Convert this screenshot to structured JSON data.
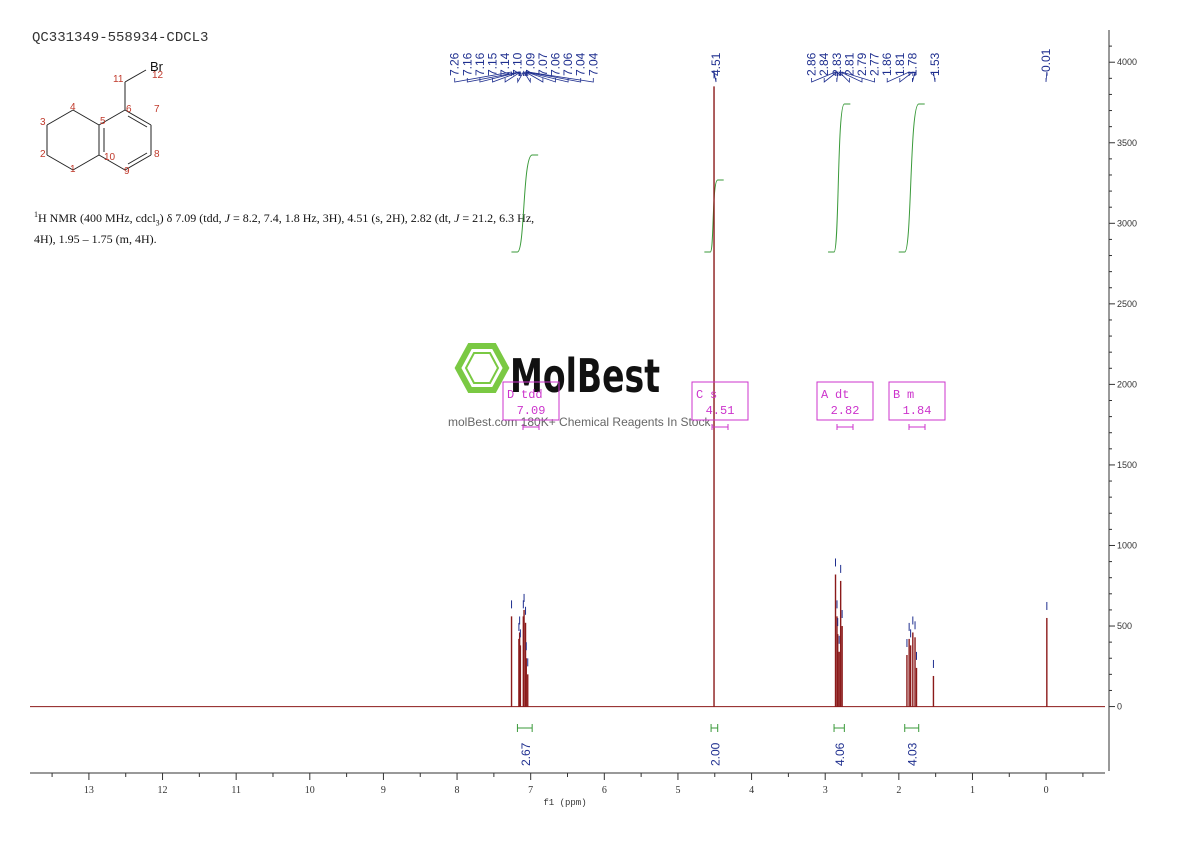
{
  "sample_id": "QC331349-558934-CDCL3",
  "nmr_text": {
    "part1": "H NMR (400 MHz, cdcl",
    "sub": "3",
    "part2": ") δ 7.09 (tdd, ",
    "j1": "J",
    "part3": " = 8.2, 7.4, 1.8 Hz, 3H), 4.51 (s, 2H), 2.82 (dt, ",
    "j2": "J",
    "part4": " = 21.2, 6.3 Hz,",
    "line2": "4H), 1.95 – 1.75 (m, 4H).",
    "sup": "1"
  },
  "structure": {
    "atom_labels": [
      "1",
      "2",
      "3",
      "4",
      "5",
      "6",
      "7",
      "8",
      "9",
      "10",
      "11",
      "12"
    ],
    "substituent": "Br"
  },
  "watermark": {
    "brand": "MolBest",
    "tagline": "molBest.com 180K+ Chemical Reagents In Stock."
  },
  "colors": {
    "spectrum": "#8b1a1a",
    "peak_labels": "#1f2f8f",
    "integral_curve": "#3a9a3a",
    "multiplet_box": "#cc33cc",
    "logo": "#7ac943",
    "axis": "#333333"
  },
  "chart_data": {
    "type": "line",
    "title": "",
    "xlabel": "f1 (ppm)",
    "ylabel": "",
    "x_reversed": true,
    "xlim": [
      13.8,
      -0.8
    ],
    "ylim": [
      -400,
      4200
    ],
    "x_ticks": [
      13,
      12,
      11,
      10,
      9,
      8,
      7,
      6,
      5,
      4,
      3,
      2,
      1,
      0
    ],
    "y_ticks": [
      0,
      500,
      1000,
      1500,
      2000,
      2500,
      3000,
      3500,
      4000
    ],
    "peak_labels_group1": [
      "7.26",
      "7.16",
      "7.16",
      "7.15",
      "7.14",
      "7.10",
      "7.09",
      "7.07",
      "7.06",
      "7.06",
      "7.04",
      "7.04"
    ],
    "peak_labels_group2": [
      "4.51"
    ],
    "peak_labels_group3": [
      "2.86",
      "2.84",
      "2.83",
      "2.81",
      "2.79",
      "2.77",
      "1.86",
      "1.81",
      "1.78"
    ],
    "peak_labels_group4": [
      "1.53"
    ],
    "peak_labels_group5": [
      "-0.01"
    ],
    "peaks": [
      {
        "ppm": 7.26,
        "height": 560
      },
      {
        "ppm": 7.16,
        "height": 420
      },
      {
        "ppm": 7.15,
        "height": 460
      },
      {
        "ppm": 7.14,
        "height": 380
      },
      {
        "ppm": 7.1,
        "height": 560
      },
      {
        "ppm": 7.09,
        "height": 600
      },
      {
        "ppm": 7.07,
        "height": 520
      },
      {
        "ppm": 7.06,
        "height": 300
      },
      {
        "ppm": 7.04,
        "height": 200
      },
      {
        "ppm": 4.51,
        "height": 3850
      },
      {
        "ppm": 2.86,
        "height": 820
      },
      {
        "ppm": 2.84,
        "height": 560
      },
      {
        "ppm": 2.83,
        "height": 450
      },
      {
        "ppm": 2.81,
        "height": 340
      },
      {
        "ppm": 2.79,
        "height": 780
      },
      {
        "ppm": 2.77,
        "height": 500
      },
      {
        "ppm": 1.89,
        "height": 320
      },
      {
        "ppm": 1.86,
        "height": 420
      },
      {
        "ppm": 1.84,
        "height": 380
      },
      {
        "ppm": 1.81,
        "height": 460
      },
      {
        "ppm": 1.78,
        "height": 430
      },
      {
        "ppm": 1.76,
        "height": 240
      },
      {
        "ppm": 1.53,
        "height": 190
      },
      {
        "ppm": -0.01,
        "height": 550
      }
    ],
    "multiplets": [
      {
        "id": "D",
        "type": "tdd",
        "shift": "7.09",
        "ppm": 7.09
      },
      {
        "id": "C",
        "type": "s",
        "shift": "4.51",
        "ppm": 4.51
      },
      {
        "id": "A",
        "type": "dt",
        "shift": "2.82",
        "ppm": 2.82
      },
      {
        "id": "B",
        "type": "m",
        "shift": "1.84",
        "ppm": 1.84
      }
    ],
    "integrals": [
      {
        "value": "2.67",
        "from": 7.18,
        "to": 6.98
      },
      {
        "value": "2.00",
        "from": 4.55,
        "to": 4.46
      },
      {
        "value": "4.06",
        "from": 2.88,
        "to": 2.74
      },
      {
        "value": "4.03",
        "from": 1.92,
        "to": 1.73
      }
    ]
  }
}
